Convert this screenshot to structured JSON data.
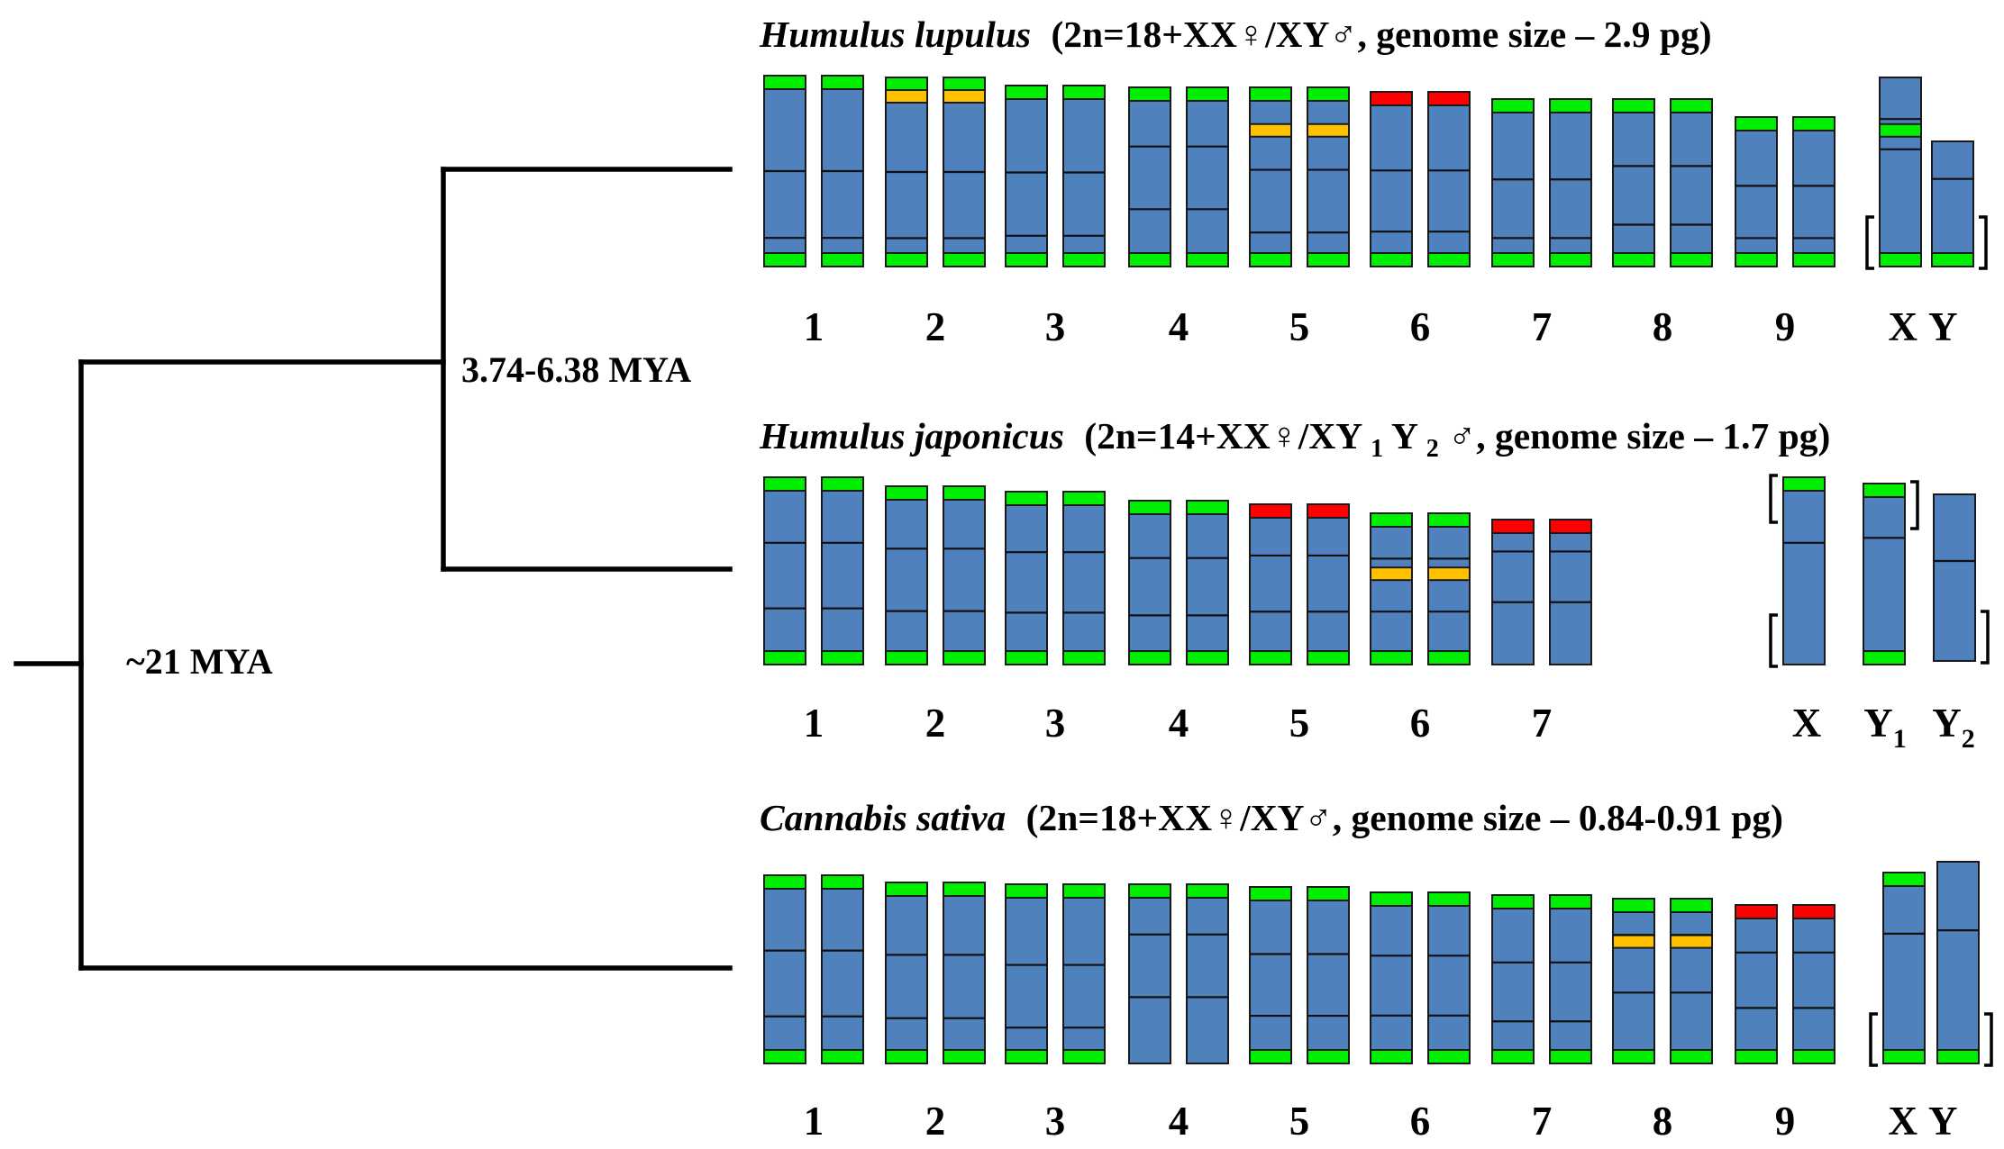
{
  "colors": {
    "chromosome": "#4f81bd",
    "telomere_signal": "#00ee00",
    "red_signal": "#ff0000",
    "orange_signal": "#ffc000",
    "outline": "#1a1a1a",
    "text": "#000000"
  },
  "tree": {
    "root_age": "~21 MYA",
    "humulus_split_age": "3.74-6.38 MYA"
  },
  "panels": [
    {
      "species": "Humulus lupulus",
      "formula_pre": "(2n=18+XX♀/XY♂, genome size – 2.9 pg)",
      "formula_sub1": "",
      "formula_mid": "",
      "formula_sub2": "",
      "formula_post": "",
      "chromosomes": [
        {
          "label": "1",
          "sub": "",
          "pair": true,
          "top": "green",
          "bottom": "green",
          "bands": [],
          "extra_green": [],
          "brackets": ""
        },
        {
          "label": "2",
          "sub": "",
          "pair": true,
          "top": "green",
          "bottom": "green",
          "bands": [
            {
              "pos": 0.1,
              "color": "orange"
            }
          ],
          "extra_green": [],
          "brackets": ""
        },
        {
          "label": "3",
          "sub": "",
          "pair": true,
          "top": "green",
          "bottom": "green",
          "bands": [],
          "extra_green": [],
          "brackets": ""
        },
        {
          "label": "4",
          "sub": "",
          "pair": true,
          "top": "green",
          "bottom": "green",
          "bands": [],
          "extra_green": [],
          "brackets": ""
        },
        {
          "label": "5",
          "sub": "",
          "pair": true,
          "top": "green",
          "bottom": "green",
          "bands": [
            {
              "pos": 0.24,
              "color": "orange"
            }
          ],
          "extra_green": [],
          "brackets": ""
        },
        {
          "label": "6",
          "sub": "",
          "pair": true,
          "top": "red",
          "bottom": "green",
          "bands": [],
          "extra_green": [],
          "brackets": ""
        },
        {
          "label": "7",
          "sub": "",
          "pair": true,
          "top": "green",
          "bottom": "green",
          "bands": [],
          "extra_green": [],
          "brackets": ""
        },
        {
          "label": "8",
          "sub": "",
          "pair": true,
          "top": "green",
          "bottom": "green",
          "bands": [],
          "extra_green": [],
          "brackets": ""
        },
        {
          "label": "9",
          "sub": "",
          "pair": true,
          "top": "green",
          "bottom": "green",
          "bands": [],
          "extra_green": [],
          "brackets": ""
        },
        {
          "label": "X",
          "sub": "",
          "pair": false,
          "top": "none",
          "bottom": "green",
          "bands": [],
          "extra_green": [
            0.28
          ],
          "brackets": "bottom-left"
        },
        {
          "label": "Y",
          "sub": "",
          "pair": false,
          "top": "none",
          "bottom": "green",
          "bands": [],
          "extra_green": [],
          "brackets": "bottom-right"
        }
      ]
    },
    {
      "species": "Humulus japonicus",
      "formula_pre": "(2n=14+XX♀/XY",
      "formula_sub1": "1",
      "formula_mid": "Y",
      "formula_sub2": "2",
      "formula_post": "♂, genome size – 1.7 pg)",
      "chromosomes": [
        {
          "label": "1",
          "sub": "",
          "pair": true,
          "top": "green",
          "bottom": "green",
          "bands": [],
          "extra_green": [],
          "brackets": ""
        },
        {
          "label": "2",
          "sub": "",
          "pair": true,
          "top": "green",
          "bottom": "green",
          "bands": [],
          "extra_green": [],
          "brackets": ""
        },
        {
          "label": "3",
          "sub": "",
          "pair": true,
          "top": "green",
          "bottom": "green",
          "bands": [],
          "extra_green": [],
          "brackets": ""
        },
        {
          "label": "4",
          "sub": "",
          "pair": true,
          "top": "green",
          "bottom": "green",
          "bands": [],
          "extra_green": [],
          "brackets": ""
        },
        {
          "label": "5",
          "sub": "",
          "pair": true,
          "top": "red",
          "bottom": "green",
          "bands": [],
          "extra_green": [],
          "brackets": ""
        },
        {
          "label": "6",
          "sub": "",
          "pair": true,
          "top": "green",
          "bottom": "green",
          "bands": [
            {
              "pos": 0.4,
              "color": "orange"
            }
          ],
          "extra_green": [],
          "brackets": ""
        },
        {
          "label": "7",
          "sub": "",
          "pair": true,
          "top": "red",
          "bottom": "none",
          "bands": [],
          "extra_green": [],
          "brackets": ""
        },
        {
          "label": "X",
          "sub": "",
          "pair": false,
          "top": "green",
          "bottom": "none",
          "bands": [],
          "extra_green": [],
          "brackets": "left-both"
        },
        {
          "label": "Y",
          "sub": "1",
          "pair": false,
          "top": "green",
          "bottom": "green",
          "bands": [],
          "extra_green": [],
          "brackets": "top-right"
        },
        {
          "label": "Y",
          "sub": "2",
          "pair": false,
          "top": "none",
          "bottom": "none",
          "bands": [],
          "extra_green": [],
          "brackets": "bottom-right"
        }
      ]
    },
    {
      "species": "Cannabis sativa",
      "formula_pre": "(2n=18+XX♀/XY♂, genome size – 0.84-0.91 pg)",
      "formula_sub1": "",
      "formula_mid": "",
      "formula_sub2": "",
      "formula_post": "",
      "chromosomes": [
        {
          "label": "1",
          "sub": "",
          "pair": true,
          "top": "green",
          "bottom": "green",
          "bands": [],
          "extra_green": [],
          "brackets": ""
        },
        {
          "label": "2",
          "sub": "",
          "pair": true,
          "top": "green",
          "bottom": "green",
          "bands": [],
          "extra_green": [],
          "brackets": ""
        },
        {
          "label": "3",
          "sub": "",
          "pair": true,
          "top": "green",
          "bottom": "green",
          "bands": [],
          "extra_green": [],
          "brackets": ""
        },
        {
          "label": "4",
          "sub": "",
          "pair": true,
          "top": "green",
          "bottom": "none",
          "bands": [],
          "extra_green": [],
          "brackets": ""
        },
        {
          "label": "5",
          "sub": "",
          "pair": true,
          "top": "green",
          "bottom": "green",
          "bands": [],
          "extra_green": [],
          "brackets": ""
        },
        {
          "label": "6",
          "sub": "",
          "pair": true,
          "top": "green",
          "bottom": "green",
          "bands": [],
          "extra_green": [],
          "brackets": ""
        },
        {
          "label": "7",
          "sub": "",
          "pair": true,
          "top": "green",
          "bottom": "green",
          "bands": [],
          "extra_green": [],
          "brackets": ""
        },
        {
          "label": "8",
          "sub": "",
          "pair": true,
          "top": "green",
          "bottom": "green",
          "bands": [
            {
              "pos": 0.26,
              "color": "orange"
            }
          ],
          "extra_green": [],
          "brackets": ""
        },
        {
          "label": "9",
          "sub": "",
          "pair": true,
          "top": "red",
          "bottom": "green",
          "bands": [],
          "extra_green": [],
          "brackets": ""
        },
        {
          "label": "X",
          "sub": "",
          "pair": false,
          "top": "green",
          "bottom": "green",
          "bands": [],
          "extra_green": [],
          "brackets": "bottom-left"
        },
        {
          "label": "Y",
          "sub": "",
          "pair": false,
          "top": "none",
          "bottom": "green",
          "bands": [],
          "extra_green": [],
          "brackets": "bottom-right"
        }
      ]
    }
  ]
}
